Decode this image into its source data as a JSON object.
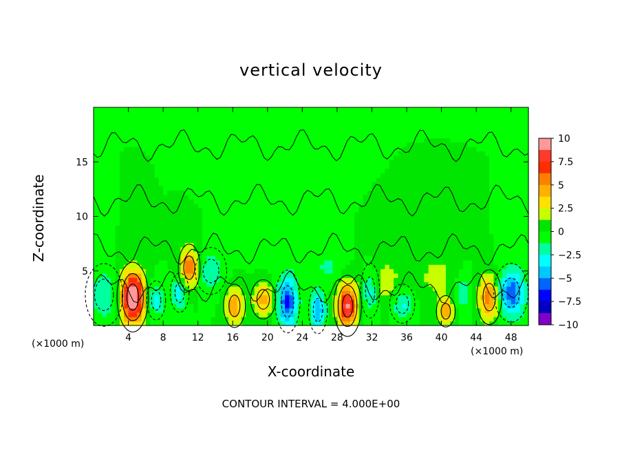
{
  "chart_data": {
    "type": "heatmap",
    "title": "vertical velocity",
    "xlabel": "X-coordinate",
    "ylabel": "Z-coordinate",
    "x_unit_left": "(×1000 m)",
    "x_unit_right": "(×1000 m)",
    "xlim": [
      0,
      50
    ],
    "ylim": [
      0,
      20
    ],
    "x_ticks": [
      4,
      8,
      12,
      16,
      20,
      24,
      28,
      32,
      36,
      40,
      44,
      48
    ],
    "x_tick_labels": [
      "4",
      "8",
      "12",
      "16",
      "20",
      "24",
      "28",
      "32",
      "36",
      "40",
      "44",
      "48"
    ],
    "y_ticks": [
      5,
      10,
      15
    ],
    "y_tick_labels": [
      "5",
      "10",
      "15"
    ],
    "colorbar": {
      "range": [
        -10,
        10
      ],
      "tick_values": [
        10,
        7.5,
        5,
        2.5,
        0,
        -2.5,
        -5,
        -7.5,
        -10
      ],
      "tick_labels": [
        "10",
        "7.5",
        "5",
        "2.5",
        "0",
        "−2.5",
        "−5",
        "−7.5",
        "−10"
      ],
      "colors": [
        "#ff9999",
        "#ff3a2a",
        "#ff2d00",
        "#ff8000",
        "#ffb000",
        "#ffe100",
        "#c8ff00",
        "#00e600",
        "#00ff00",
        "#00ffa0",
        "#00ffff",
        "#00c8ff",
        "#0064ff",
        "#0000ff",
        "#0000be",
        "#8000c8"
      ]
    },
    "contour_interval": "CONTOUR INTERVAL = 4.000E+00",
    "background_value": 0,
    "features": [
      {
        "x": 4.5,
        "z": 2.6,
        "w": 12.0,
        "sx": 0.9,
        "sz": 1.6
      },
      {
        "x": 11.0,
        "z": 5.3,
        "w": 6.5,
        "sx": 0.7,
        "sz": 1.2
      },
      {
        "x": 16.2,
        "z": 1.8,
        "w": 5.0,
        "sx": 0.7,
        "sz": 1.1
      },
      {
        "x": 19.5,
        "z": 2.4,
        "w": 4.5,
        "sx": 0.8,
        "sz": 1.0
      },
      {
        "x": 29.2,
        "z": 1.8,
        "w": 9.0,
        "sx": 0.8,
        "sz": 1.4
      },
      {
        "x": 40.5,
        "z": 1.3,
        "w": 5.0,
        "sx": 0.6,
        "sz": 0.8
      },
      {
        "x": 45.5,
        "z": 2.6,
        "w": 6.0,
        "sx": 0.8,
        "sz": 1.4
      },
      {
        "x": 33.5,
        "z": 4.0,
        "w": 2.0,
        "sx": 1.5,
        "sz": 1.5
      },
      {
        "x": 39.5,
        "z": 4.5,
        "w": 1.8,
        "sx": 1.5,
        "sz": 1.5
      },
      {
        "x": 22.3,
        "z": 2.2,
        "w": -6.5,
        "sx": 0.8,
        "sz": 1.6
      },
      {
        "x": 25.8,
        "z": 1.4,
        "w": -5.0,
        "sx": 0.6,
        "sz": 1.2
      },
      {
        "x": 7.2,
        "z": 2.3,
        "w": -3.0,
        "sx": 0.6,
        "sz": 1.0
      },
      {
        "x": 9.9,
        "z": 3.0,
        "w": -3.5,
        "sx": 0.6,
        "sz": 1.0
      },
      {
        "x": 13.5,
        "z": 5.0,
        "w": -2.5,
        "sx": 1.0,
        "sz": 1.2
      },
      {
        "x": 1.2,
        "z": 2.8,
        "w": -2.5,
        "sx": 1.2,
        "sz": 1.6
      },
      {
        "x": 31.8,
        "z": 3.2,
        "w": -3.5,
        "sx": 0.6,
        "sz": 1.4
      },
      {
        "x": 35.5,
        "z": 2.0,
        "w": -3.0,
        "sx": 0.8,
        "sz": 1.0
      },
      {
        "x": 48.0,
        "z": 3.0,
        "w": -6.0,
        "sx": 1.1,
        "sz": 1.5
      },
      {
        "x": 27.0,
        "z": 5.5,
        "w": -1.5,
        "sx": 1.2,
        "sz": 1.2
      },
      {
        "x": 42.5,
        "z": 3.0,
        "w": -2.2,
        "sx": 0.7,
        "sz": 1.2
      },
      {
        "x": 21.0,
        "z": 9.0,
        "w": -1.0,
        "sx": 2.0,
        "sz": 2.0
      }
    ]
  }
}
